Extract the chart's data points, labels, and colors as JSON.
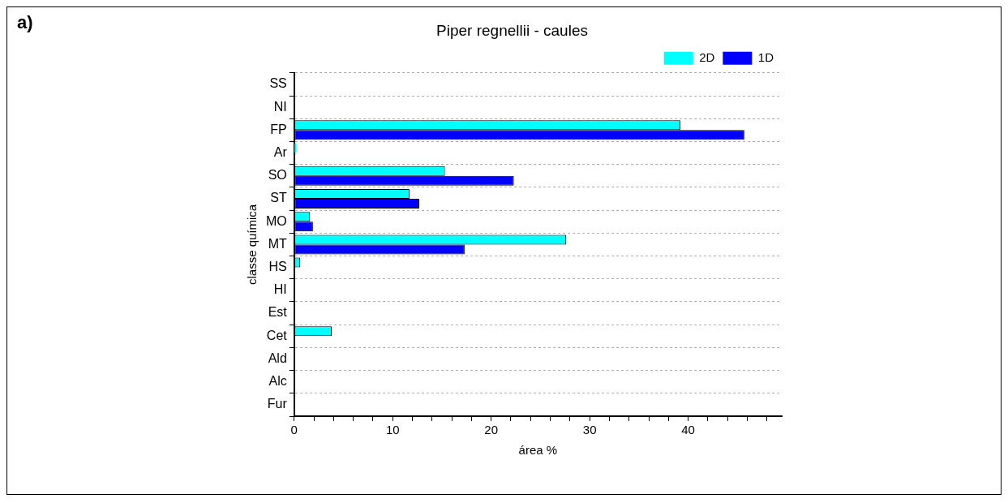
{
  "chart_data": {
    "type": "bar",
    "orientation": "horizontal",
    "title": "Piper regnellii - caules",
    "xlabel": "área %",
    "ylabel": "classe química",
    "annotations": [
      "a)"
    ],
    "categories": [
      "SS",
      "NI",
      "FP",
      "Ar",
      "SO",
      "ST",
      "MO",
      "MT",
      "HS",
      "HI",
      "Est",
      "Cet",
      "Ald",
      "Alc",
      "Fur"
    ],
    "series": [
      {
        "name": "2D",
        "color": "#00ffff",
        "values": [
          0,
          0,
          39.2,
          0.2,
          15.3,
          11.7,
          1.6,
          27.6,
          0.6,
          0,
          0,
          3.8,
          0,
          0,
          0
        ]
      },
      {
        "name": "1D",
        "color": "#0000ff",
        "values": [
          0,
          0,
          45.7,
          0,
          22.3,
          12.7,
          1.9,
          17.3,
          0,
          0,
          0,
          0,
          0,
          0,
          0
        ]
      }
    ],
    "xlim": [
      0,
      49.5
    ],
    "xticks": [
      0,
      {
        "value": 2,
        "label": null
      },
      {
        "value": 4,
        "label": null
      },
      {
        "value": 6,
        "label": null
      },
      {
        "value": 8,
        "label": null
      },
      10,
      {
        "value": 12,
        "label": null
      },
      {
        "value": 14,
        "label": null
      },
      {
        "value": 16,
        "label": null
      },
      {
        "value": 18,
        "label": null
      },
      20,
      {
        "value": 22,
        "label": null
      },
      {
        "value": 24,
        "label": null
      },
      {
        "value": 26,
        "label": null
      },
      {
        "value": 28,
        "label": null
      },
      30,
      {
        "value": 32,
        "label": null
      },
      {
        "value": 34,
        "label": null
      },
      {
        "value": 36,
        "label": null
      },
      {
        "value": 38,
        "label": null
      },
      40,
      {
        "value": 42,
        "label": null
      },
      {
        "value": 44,
        "label": null
      },
      {
        "value": 46,
        "label": null
      },
      {
        "value": 48,
        "label": null
      }
    ],
    "grid": "y",
    "legend": "top right"
  }
}
